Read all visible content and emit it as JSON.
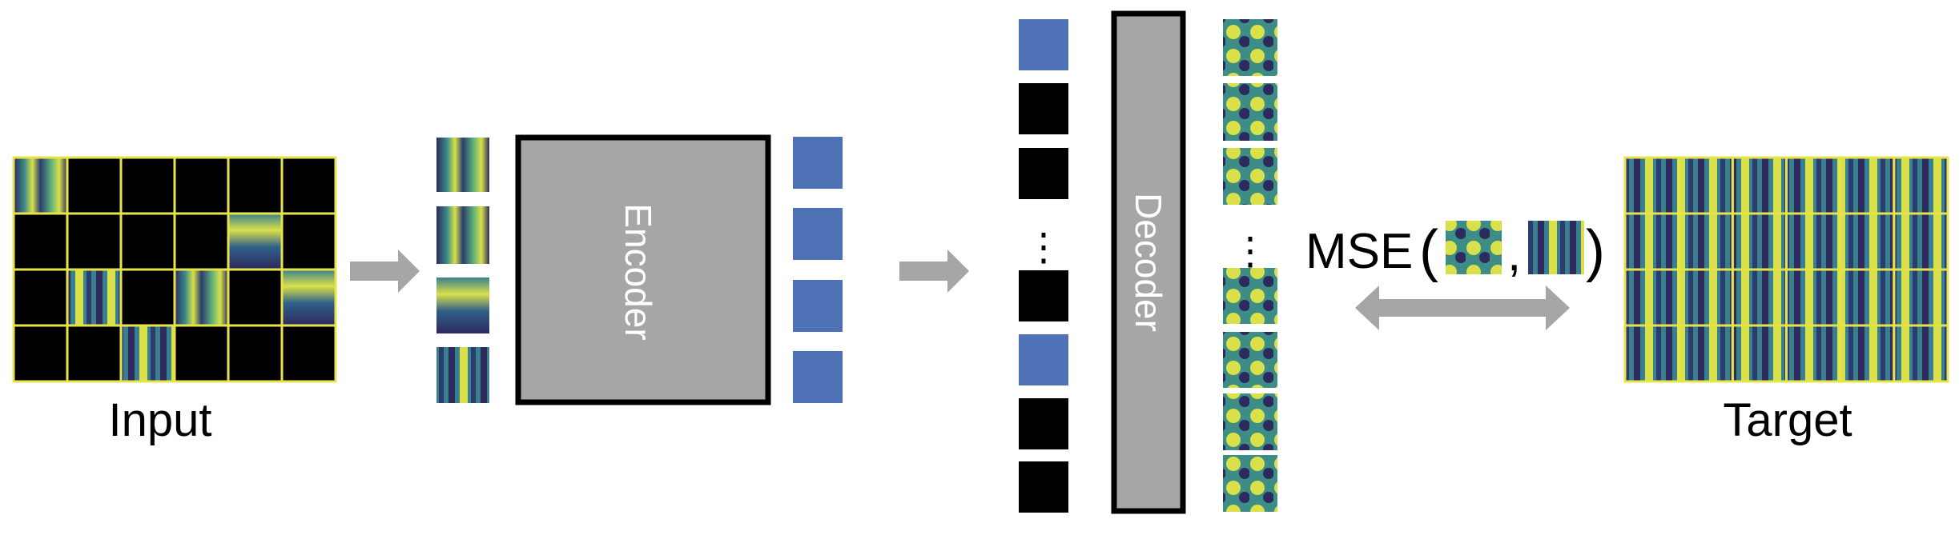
{
  "labels": {
    "input": "Input",
    "encoder": "Encoder",
    "decoder": "Decoder",
    "target": "Target",
    "mse": "MSE",
    "paren_open": "(",
    "paren_close": ")",
    "comma": ",",
    "ellipsis": "⋮"
  },
  "colors": {
    "patch_yellow": "#e8e74a",
    "grid_line": "#e6e34b",
    "masked": "#000000",
    "token_blue": "#4f71b5",
    "block_gray": "#a6a6a6",
    "arrow_gray": "#a6a6a6",
    "spec_dark": "#2d2a5e",
    "spec_mid": "#3a8a8a",
    "spec_light": "#d9e04a"
  },
  "input_grid": {
    "rows": 4,
    "cols": 6,
    "visible": [
      [
        0,
        0
      ],
      [
        1,
        4
      ],
      [
        2,
        1
      ],
      [
        2,
        3
      ],
      [
        2,
        5
      ],
      [
        3,
        2
      ]
    ]
  },
  "decoder_column": [
    "blue",
    "black",
    "black",
    "ellipsis",
    "black",
    "blue",
    "black",
    "black"
  ],
  "icons": [
    "arrow-right-icon",
    "arrow-right-icon",
    "double-arrow-icon"
  ]
}
